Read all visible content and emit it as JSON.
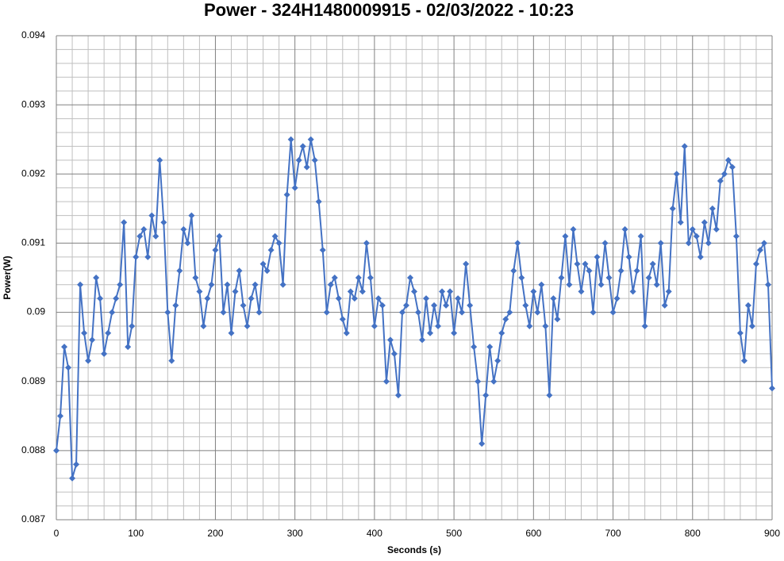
{
  "chart_data": {
    "type": "line",
    "title": "Power - 324H1480009915 - 02/03/2022 - 10:23",
    "x_label": "Seconds (s)",
    "y_label": "Power(W)",
    "xlim": [
      0,
      900
    ],
    "xticks": [
      0,
      100,
      200,
      300,
      400,
      500,
      600,
      700,
      800,
      900
    ],
    "ylim": [
      0.087,
      0.094
    ],
    "yticks": [
      0.087,
      0.088,
      0.089,
      0.09,
      0.091,
      0.092,
      0.093,
      0.094
    ],
    "grid": true,
    "x": [
      0,
      5,
      10,
      15,
      20,
      25,
      30,
      35,
      40,
      45,
      50,
      55,
      60,
      65,
      70,
      75,
      80,
      85,
      90,
      95,
      100,
      105,
      110,
      115,
      120,
      125,
      130,
      135,
      140,
      145,
      150,
      155,
      160,
      165,
      170,
      175,
      180,
      185,
      190,
      195,
      200,
      205,
      210,
      215,
      220,
      225,
      230,
      235,
      240,
      245,
      250,
      255,
      260,
      265,
      270,
      275,
      280,
      285,
      290,
      295,
      300,
      305,
      310,
      315,
      320,
      325,
      330,
      335,
      340,
      345,
      350,
      355,
      360,
      365,
      370,
      375,
      380,
      385,
      390,
      395,
      400,
      405,
      410,
      415,
      420,
      425,
      430,
      435,
      440,
      445,
      450,
      455,
      460,
      465,
      470,
      475,
      480,
      485,
      490,
      495,
      500,
      505,
      510,
      515,
      520,
      525,
      530,
      535,
      540,
      545,
      550,
      555,
      560,
      565,
      570,
      575,
      580,
      585,
      590,
      595,
      600,
      605,
      610,
      615,
      620,
      625,
      630,
      635,
      640,
      645,
      650,
      655,
      660,
      665,
      670,
      675,
      680,
      685,
      690,
      695,
      700,
      705,
      710,
      715,
      720,
      725,
      730,
      735,
      740,
      745,
      750,
      755,
      760,
      765,
      770,
      775,
      780,
      785,
      790,
      795,
      800,
      805,
      810,
      815,
      820,
      825,
      830,
      835,
      840,
      845,
      850,
      855,
      860,
      865,
      870,
      875,
      880,
      885,
      890,
      895,
      900
    ],
    "series": [
      {
        "name": "Power",
        "color": "#4472c4",
        "values": [
          0.088,
          0.0885,
          0.0895,
          0.0892,
          0.0876,
          0.0878,
          0.0904,
          0.0897,
          0.0893,
          0.0896,
          0.0905,
          0.0902,
          0.0894,
          0.0897,
          0.09,
          0.0902,
          0.0904,
          0.0913,
          0.0895,
          0.0898,
          0.0908,
          0.0911,
          0.0912,
          0.0908,
          0.0914,
          0.0911,
          0.0922,
          0.0913,
          0.09,
          0.0893,
          0.0901,
          0.0906,
          0.0912,
          0.091,
          0.0914,
          0.0905,
          0.0903,
          0.0898,
          0.0902,
          0.0904,
          0.0909,
          0.0911,
          0.09,
          0.0904,
          0.0897,
          0.0903,
          0.0906,
          0.0901,
          0.0898,
          0.0902,
          0.0904,
          0.09,
          0.0907,
          0.0906,
          0.0909,
          0.0911,
          0.091,
          0.0904,
          0.0917,
          0.0925,
          0.0918,
          0.0922,
          0.0924,
          0.0921,
          0.0925,
          0.0922,
          0.0916,
          0.0909,
          0.09,
          0.0904,
          0.0905,
          0.0902,
          0.0899,
          0.0897,
          0.0903,
          0.0902,
          0.0905,
          0.0903,
          0.091,
          0.0905,
          0.0898,
          0.0902,
          0.0901,
          0.089,
          0.0896,
          0.0894,
          0.0888,
          0.09,
          0.0901,
          0.0905,
          0.0903,
          0.09,
          0.0896,
          0.0902,
          0.0897,
          0.0901,
          0.0898,
          0.0903,
          0.0901,
          0.0903,
          0.0897,
          0.0902,
          0.09,
          0.0907,
          0.0901,
          0.0895,
          0.089,
          0.0881,
          0.0888,
          0.0895,
          0.089,
          0.0893,
          0.0897,
          0.0899,
          0.09,
          0.0906,
          0.091,
          0.0905,
          0.0901,
          0.0898,
          0.0903,
          0.09,
          0.0904,
          0.0898,
          0.0888,
          0.0902,
          0.0899,
          0.0905,
          0.0911,
          0.0904,
          0.0912,
          0.0907,
          0.0903,
          0.0907,
          0.0906,
          0.09,
          0.0908,
          0.0904,
          0.091,
          0.0905,
          0.09,
          0.0902,
          0.0906,
          0.0912,
          0.0908,
          0.0903,
          0.0906,
          0.0911,
          0.0898,
          0.0905,
          0.0907,
          0.0904,
          0.091,
          0.0901,
          0.0903,
          0.0915,
          0.092,
          0.0913,
          0.0924,
          0.091,
          0.0912,
          0.0911,
          0.0908,
          0.0913,
          0.091,
          0.0915,
          0.0912,
          0.0919,
          0.092,
          0.0922,
          0.0921,
          0.0911,
          0.0897,
          0.0893,
          0.0901,
          0.0898,
          0.0907,
          0.0909,
          0.091,
          0.0904,
          0.0889
        ]
      }
    ]
  }
}
